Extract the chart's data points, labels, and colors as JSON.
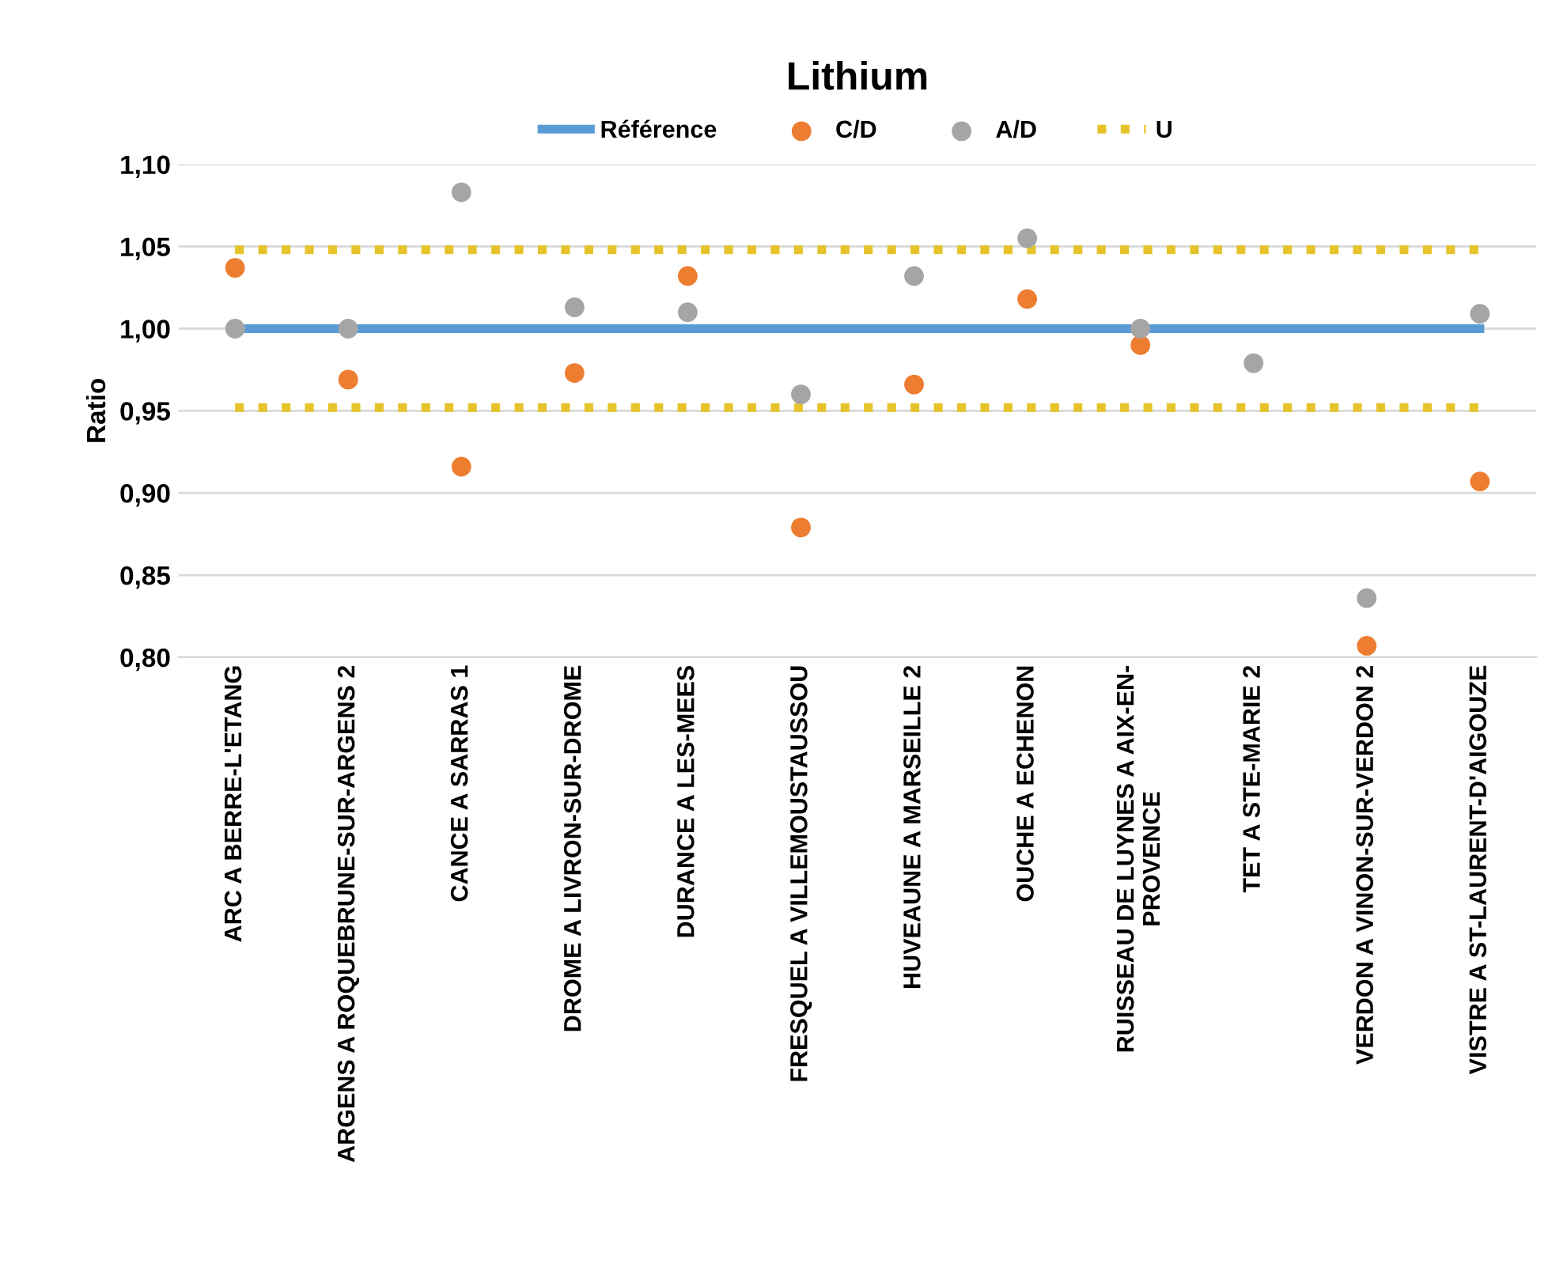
{
  "chart_data": {
    "type": "scatter",
    "title": "Lithium",
    "ylabel": "Ratio",
    "categories": [
      "ARC A BERRE-L'ETANG",
      "ARGENS A ROQUEBRUNE-SUR-ARGENS 2",
      "CANCE A SARRAS 1",
      "DROME A LIVRON-SUR-DROME",
      "DURANCE A LES-MEES",
      "FRESQUEL A VILLEMOUSTAUSSOU",
      "HUVEAUNE A MARSEILLE 2",
      "OUCHE A ECHENON",
      "RUISSEAU DE LUYNES A AIX-EN-\nPROVENCE",
      "TET A STE-MARIE 2",
      "VERDON A VINON-SUR-VERDON 2",
      "VISTRE A ST-LAURENT-D'AIGOUZE"
    ],
    "series": [
      {
        "name": "Référence",
        "type": "line",
        "color": "#5b9bd5",
        "line_style": "solid",
        "marker": "none",
        "values": [
          1.0,
          1.0,
          1.0,
          1.0,
          1.0,
          1.0,
          1.0,
          1.0,
          1.0,
          1.0,
          1.0,
          1.0
        ]
      },
      {
        "name": "C/D",
        "color": "#ed7d31",
        "marker": "circle",
        "values": [
          1.037,
          0.969,
          0.916,
          0.973,
          1.032,
          0.879,
          0.966,
          1.018,
          0.99,
          null,
          0.807,
          0.907
        ]
      },
      {
        "name": "A/D",
        "color": "#a5a5a5",
        "marker": "circle",
        "values": [
          1.0,
          1.0,
          1.083,
          1.013,
          1.01,
          0.96,
          1.032,
          1.055,
          1.0,
          0.979,
          0.836,
          1.009
        ]
      }
    ],
    "ref_lines": [
      {
        "axis": "y",
        "value": 1.048,
        "label": "U",
        "color": "#e6c32a",
        "line_style": "dotted"
      },
      {
        "axis": "y",
        "value": 0.952,
        "color": "#e6c32a",
        "line_style": "dotted"
      }
    ],
    "ylim": [
      0.8,
      1.1
    ],
    "yticks": [
      {
        "value": 0.8,
        "label": "0,80"
      },
      {
        "value": 0.85,
        "label": "0,85"
      },
      {
        "value": 0.9,
        "label": "0,90"
      },
      {
        "value": 0.95,
        "label": "0,95"
      },
      {
        "value": 1.0,
        "label": "1,00"
      },
      {
        "value": 1.05,
        "label": "1,05"
      },
      {
        "value": 1.1,
        "label": "1,10"
      }
    ],
    "grid": "y",
    "legend": "top"
  }
}
